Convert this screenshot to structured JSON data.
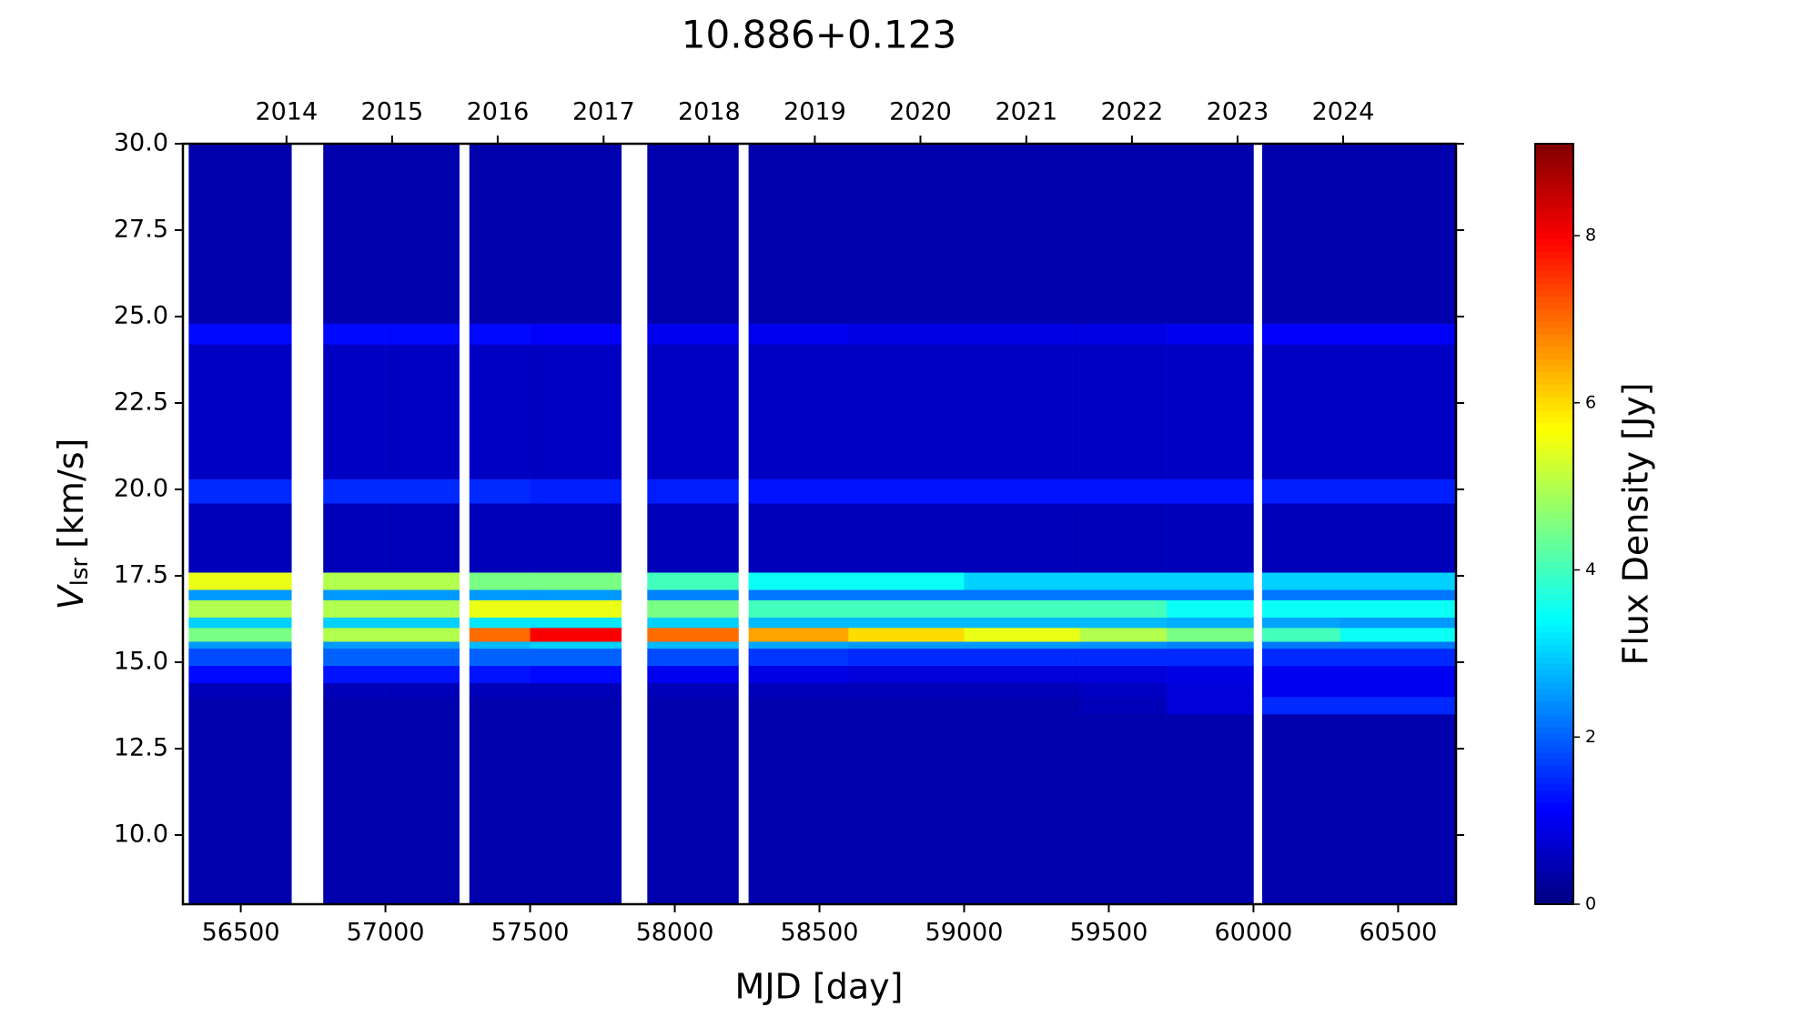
{
  "chart_data": {
    "type": "heatmap",
    "title": "10.886+0.123",
    "xlabel": "MJD [day]",
    "ylabel": "V",
    "ylabel_subscript": "lsr",
    "ylabel_unit": "[km/s]",
    "colorbar_label": "Flux Density [Jy]",
    "colormap": "jet",
    "xlim": [
      56300,
      60700
    ],
    "xticks": [
      56500,
      57000,
      57500,
      58000,
      58500,
      59000,
      59500,
      60000,
      60500
    ],
    "x2ticks": [
      {
        "value": 56658,
        "label": "2014"
      },
      {
        "value": 57023,
        "label": "2015"
      },
      {
        "value": 57388,
        "label": "2016"
      },
      {
        "value": 57754,
        "label": "2017"
      },
      {
        "value": 58119,
        "label": "2018"
      },
      {
        "value": 58484,
        "label": "2019"
      },
      {
        "value": 58849,
        "label": "2020"
      },
      {
        "value": 59215,
        "label": "2021"
      },
      {
        "value": 59580,
        "label": "2022"
      },
      {
        "value": 59945,
        "label": "2023"
      },
      {
        "value": 60310,
        "label": "2024"
      }
    ],
    "ylim": [
      8,
      30
    ],
    "yticks": [
      {
        "value": 10,
        "label": "10.0"
      },
      {
        "value": 12.5,
        "label": "12.5"
      },
      {
        "value": 15,
        "label": "15.0"
      },
      {
        "value": 17.5,
        "label": "17.5"
      },
      {
        "value": 20,
        "label": "20.0"
      },
      {
        "value": 22.5,
        "label": "22.5"
      },
      {
        "value": 25,
        "label": "25.0"
      },
      {
        "value": 27.5,
        "label": "27.5"
      },
      {
        "value": 30,
        "label": "30.0"
      }
    ],
    "clim": [
      0,
      9.1
    ],
    "cticks": [
      0,
      2,
      4,
      6,
      8
    ],
    "x_edges": [
      56320,
      56675,
      56785,
      57000,
      57255,
      57290,
      57500,
      57815,
      57905,
      58220,
      58255,
      58600,
      59000,
      59400,
      59700,
      60000,
      60030,
      60300,
      60700
    ],
    "y_edges": [
      8,
      13.5,
      14.0,
      14.4,
      14.9,
      15.4,
      15.6,
      16.0,
      16.3,
      16.8,
      17.1,
      17.6,
      19.6,
      20.3,
      24.2,
      24.8,
      30
    ],
    "values": [
      [
        0.4,
        null,
        0.4,
        0.4,
        null,
        0.4,
        0.4,
        null,
        0.4,
        null,
        0.4,
        0.4,
        0.4,
        0.4,
        0.4,
        null,
        0.4,
        0.4
      ],
      [
        0.4,
        null,
        0.4,
        0.4,
        null,
        0.4,
        0.4,
        null,
        0.4,
        null,
        0.4,
        0.4,
        0.4,
        0.5,
        0.8,
        null,
        1.5,
        1.5
      ],
      [
        0.5,
        null,
        0.5,
        0.5,
        null,
        0.5,
        0.5,
        null,
        0.5,
        null,
        0.5,
        0.5,
        0.5,
        0.6,
        0.8,
        null,
        1.0,
        1.0
      ],
      [
        1.2,
        null,
        1.3,
        1.3,
        null,
        1.3,
        1.2,
        null,
        1.0,
        null,
        0.9,
        0.8,
        0.8,
        0.8,
        0.9,
        null,
        1.0,
        1.0
      ],
      [
        1.8,
        null,
        2.0,
        2.0,
        null,
        2.0,
        2.0,
        null,
        1.8,
        null,
        1.6,
        1.5,
        1.5,
        1.5,
        1.5,
        null,
        1.5,
        1.5
      ],
      [
        2.5,
        null,
        2.5,
        2.5,
        null,
        2.8,
        3.0,
        null,
        2.8,
        null,
        2.6,
        2.5,
        2.5,
        2.4,
        2.3,
        null,
        2.2,
        2.2
      ],
      [
        4.5,
        null,
        5.0,
        5.0,
        null,
        7.0,
        8.0,
        null,
        7.0,
        null,
        6.5,
        6.0,
        5.5,
        5.0,
        4.5,
        null,
        4.0,
        3.5
      ],
      [
        3.0,
        null,
        3.0,
        3.0,
        null,
        3.2,
        3.2,
        null,
        3.0,
        null,
        2.8,
        2.8,
        2.8,
        2.8,
        2.7,
        null,
        2.6,
        2.5
      ],
      [
        5.0,
        null,
        5.0,
        5.0,
        null,
        5.5,
        5.5,
        null,
        4.5,
        null,
        4.0,
        4.0,
        4.0,
        4.0,
        3.5,
        null,
        3.5,
        3.5
      ],
      [
        2.5,
        null,
        2.5,
        2.5,
        null,
        2.5,
        2.5,
        null,
        2.3,
        null,
        2.2,
        2.2,
        2.2,
        2.2,
        2.2,
        null,
        2.2,
        2.2
      ],
      [
        5.5,
        null,
        5.0,
        5.0,
        null,
        4.5,
        4.5,
        null,
        4.0,
        null,
        3.5,
        3.5,
        3.0,
        3.0,
        3.0,
        null,
        3.0,
        3.0
      ],
      [
        0.5,
        null,
        0.5,
        0.5,
        null,
        0.5,
        0.5,
        null,
        0.5,
        null,
        0.5,
        0.5,
        0.5,
        0.5,
        0.5,
        null,
        0.5,
        0.5
      ],
      [
        1.5,
        null,
        1.5,
        1.5,
        null,
        1.5,
        1.4,
        null,
        1.4,
        null,
        1.3,
        1.3,
        1.3,
        1.3,
        1.3,
        null,
        1.4,
        1.4
      ],
      [
        0.6,
        null,
        0.6,
        0.6,
        null,
        0.6,
        0.6,
        null,
        0.6,
        null,
        0.6,
        0.6,
        0.6,
        0.6,
        0.6,
        null,
        0.6,
        0.6
      ],
      [
        1.2,
        null,
        1.2,
        1.2,
        null,
        1.2,
        1.1,
        null,
        1.0,
        null,
        1.0,
        0.9,
        0.9,
        0.9,
        1.0,
        null,
        1.1,
        1.1
      ],
      [
        0.4,
        null,
        0.4,
        0.4,
        null,
        0.4,
        0.4,
        null,
        0.4,
        null,
        0.4,
        0.4,
        0.4,
        0.4,
        0.4,
        null,
        0.4,
        0.4
      ]
    ]
  }
}
